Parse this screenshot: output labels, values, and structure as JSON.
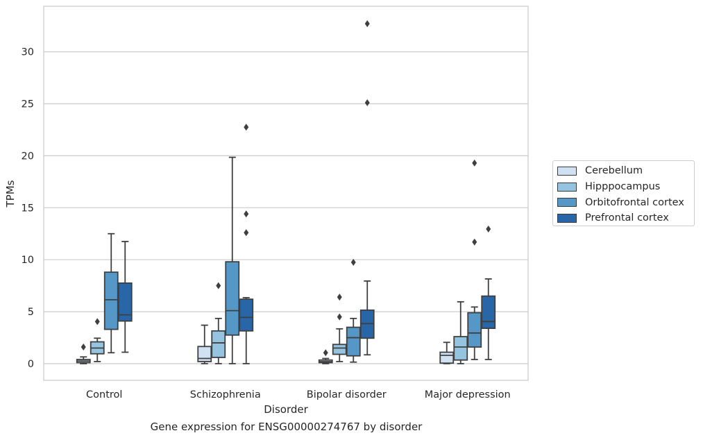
{
  "chart_data": {
    "type": "box",
    "caption": "Gene expression for ENSG00000274767 by disorder",
    "xlabel": "Disorder",
    "ylabel": "TPMs",
    "ylim": [
      -1.6,
      34.3
    ],
    "yticks": [
      0,
      5,
      10,
      15,
      20,
      25,
      30
    ],
    "grid": "horizontal",
    "legend_position": "right",
    "categories": [
      "Control",
      "Schizophrenia",
      "Bipolar disorder",
      "Major depression"
    ],
    "series": [
      {
        "name": "Cerebellum",
        "color": "#d0e1f2",
        "boxes": [
          {
            "whisker_low": 0.0,
            "q1": 0.1,
            "median": 0.25,
            "q3": 0.4,
            "whisker_high": 0.65,
            "outliers": [
              1.6
            ]
          },
          {
            "whisker_low": 0.0,
            "q1": 0.2,
            "median": 0.5,
            "q3": 1.65,
            "whisker_high": 3.7,
            "outliers": []
          },
          {
            "whisker_low": 0.0,
            "q1": 0.1,
            "median": 0.2,
            "q3": 0.35,
            "whisker_high": 0.5,
            "outliers": [
              1.05
            ]
          },
          {
            "whisker_low": 0.0,
            "q1": 0.05,
            "median": 0.8,
            "q3": 1.1,
            "whisker_high": 2.05,
            "outliers": []
          }
        ]
      },
      {
        "name": "Hipppocampus",
        "color": "#94c4df",
        "boxes": [
          {
            "whisker_low": 0.2,
            "q1": 0.95,
            "median": 1.5,
            "q3": 2.1,
            "whisker_high": 2.45,
            "outliers": [
              4.05
            ]
          },
          {
            "whisker_low": 0.0,
            "q1": 0.6,
            "median": 2.0,
            "q3": 3.15,
            "whisker_high": 4.35,
            "outliers": [
              7.5
            ]
          },
          {
            "whisker_low": 0.2,
            "q1": 0.9,
            "median": 1.5,
            "q3": 1.85,
            "whisker_high": 3.35,
            "outliers": [
              4.5,
              6.4
            ]
          },
          {
            "whisker_low": 0.0,
            "q1": 0.35,
            "median": 1.6,
            "q3": 2.6,
            "whisker_high": 5.95,
            "outliers": []
          }
        ]
      },
      {
        "name": "Orbitofrontal cortex",
        "color": "#5598c7",
        "boxes": [
          {
            "whisker_low": 1.05,
            "q1": 3.3,
            "median": 6.15,
            "q3": 8.8,
            "whisker_high": 12.5,
            "outliers": []
          },
          {
            "whisker_low": 0.0,
            "q1": 2.75,
            "median": 5.1,
            "q3": 9.8,
            "whisker_high": 19.85,
            "outliers": []
          },
          {
            "whisker_low": 0.15,
            "q1": 0.75,
            "median": 2.5,
            "q3": 3.5,
            "whisker_high": 4.35,
            "outliers": [
              9.75
            ]
          },
          {
            "whisker_low": 0.4,
            "q1": 1.6,
            "median": 2.95,
            "q3": 4.9,
            "whisker_high": 5.45,
            "outliers": [
              11.7,
              19.3
            ]
          }
        ]
      },
      {
        "name": "Prefrontal cortex",
        "color": "#2866a8",
        "boxes": [
          {
            "whisker_low": 1.1,
            "q1": 4.1,
            "median": 4.7,
            "q3": 7.75,
            "whisker_high": 11.75,
            "outliers": []
          },
          {
            "whisker_low": 0.0,
            "q1": 3.15,
            "median": 4.45,
            "q3": 6.2,
            "whisker_high": 6.35,
            "outliers": [
              12.6,
              14.4,
              22.75
            ]
          },
          {
            "whisker_low": 0.85,
            "q1": 2.45,
            "median": 3.85,
            "q3": 5.15,
            "whisker_high": 7.95,
            "outliers": [
              25.1,
              32.7
            ]
          },
          {
            "whisker_low": 0.4,
            "q1": 3.4,
            "median": 4.05,
            "q3": 6.5,
            "whisker_high": 8.15,
            "outliers": [
              12.95
            ]
          }
        ]
      }
    ]
  }
}
